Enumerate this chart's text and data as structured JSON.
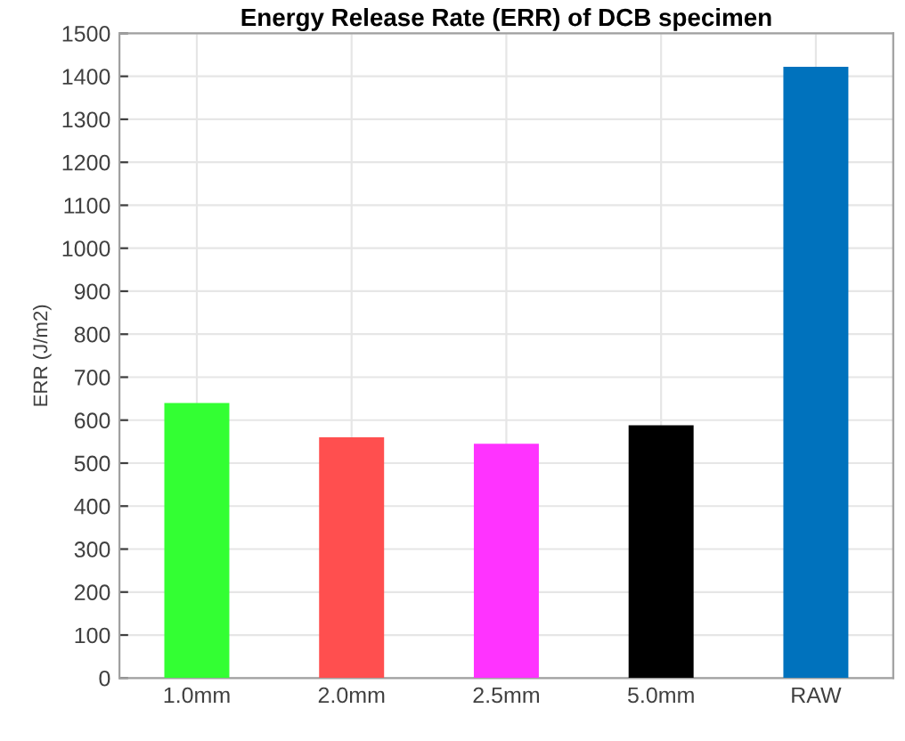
{
  "chart_data": {
    "type": "bar",
    "title": "Energy Release Rate (ERR) of DCB specimen",
    "ylabel": "ERR (J/m2)",
    "categories": [
      "1.0mm",
      "2.0mm",
      "2.5mm",
      "5.0mm",
      "RAW"
    ],
    "values": [
      640,
      560,
      545,
      588,
      1422
    ],
    "colors": [
      "#33ff33",
      "#ff4f4f",
      "#ff33ff",
      "#000000",
      "#0072bd"
    ],
    "ylim": [
      0,
      1500
    ],
    "yticks": [
      0,
      100,
      200,
      300,
      400,
      500,
      600,
      700,
      800,
      900,
      1000,
      1100,
      1200,
      1300,
      1400,
      1500
    ],
    "grid": true
  }
}
